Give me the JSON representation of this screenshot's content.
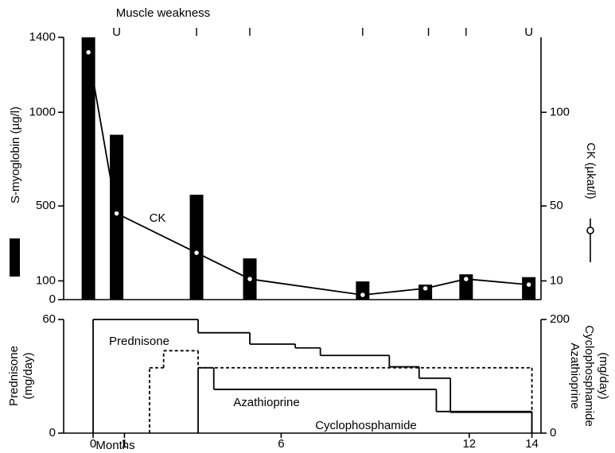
{
  "chart_data": [
    {
      "type": "bar_line",
      "muscle_weakness": {
        "label": "Muscle weakness",
        "x": [
          0.75,
          3.3,
          5,
          8.6,
          10.7,
          11.9,
          13.9
        ],
        "grades": [
          "U",
          "I",
          "I",
          "I",
          "I",
          "I",
          "U"
        ]
      },
      "annotation": "CK",
      "x": [
        -0.15,
        0.75,
        3.3,
        5,
        8.6,
        10.6,
        11.9,
        13.9
      ],
      "series": [
        {
          "name": "S-myoglobin (µg/l)",
          "color": "#000000",
          "values": [
            1400,
            880,
            560,
            220,
            97,
            80,
            135,
            120
          ]
        },
        {
          "name": "CK (µkat/l)",
          "color": "#000000",
          "axis": "y2",
          "values": [
            132,
            46,
            25,
            11,
            2.5,
            6,
            11,
            8
          ]
        }
      ],
      "xlim": [
        -0.94,
        14.29
      ],
      "ylim": [
        0,
        1400
      ],
      "yticks": [
        0,
        100,
        500,
        1000,
        1400
      ],
      "y2lim": [
        0,
        140
      ],
      "y2ticks": [
        10,
        50,
        100
      ]
    },
    {
      "type": "step",
      "ylabel": [
        "Prednisone",
        "(mg/day)"
      ],
      "y2label": [
        "Azathioprine",
        "Cyclophosphamide",
        "(mg/day)"
      ],
      "xlabel": "Months",
      "series": [
        {
          "name": "Prednisone",
          "color": "#000000",
          "line_style": "solid",
          "x": [
            0,
            3.35,
            5,
            6.45,
            7.25,
            9.45,
            10.4,
            11.4,
            14
          ],
          "values": [
            60,
            53,
            47,
            45,
            41,
            35,
            29,
            11,
            0
          ]
        },
        {
          "name": "Azathioprine",
          "color": "#000000",
          "line_style": "dashed",
          "axis": "y2",
          "x": [
            1.8,
            2.25,
            3.35,
            14
          ],
          "values": [
            115,
            145,
            115,
            0
          ]
        },
        {
          "name": "Cyclophosphamide",
          "color": "#000000",
          "line_style": "solid",
          "axis": "y2",
          "x": [
            3.35,
            3.85,
            10.95,
            14
          ],
          "values": [
            115,
            77,
            38,
            0
          ]
        }
      ],
      "xlim": [
        -0.94,
        14.29
      ],
      "xticks": [
        0,
        1,
        6,
        12,
        14
      ],
      "ylim": [
        0,
        60
      ],
      "yticks": [
        0,
        60
      ],
      "y2lim": [
        0,
        200
      ],
      "y2ticks": [
        0,
        200
      ]
    }
  ]
}
